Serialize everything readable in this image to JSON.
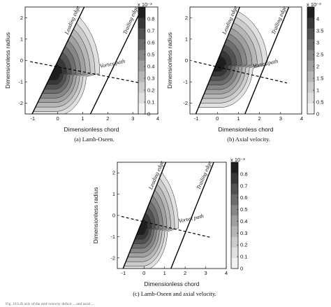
{
  "chart_data": [
    {
      "type": "contour",
      "caption": "(a) Lamb-Oseen.",
      "xlabel": "Dimensionless chord",
      "ylabel": "Dimensionless radius",
      "xlim": [
        -1.3,
        4.0
      ],
      "ylim": [
        -2.5,
        2.5
      ],
      "xticks": [
        "-1",
        "0",
        "1",
        "2",
        "3",
        "4"
      ],
      "yticks": [
        "2",
        "1",
        "0",
        "-1",
        "-2"
      ],
      "colorbar": {
        "exponent": "x 10⁻³",
        "ticks": [
          "0.8",
          "0.7",
          "0.6",
          "0.5",
          "0.4",
          "0.3",
          "0.2",
          "0.1",
          "0"
        ],
        "range": [
          0,
          0.9
        ]
      },
      "annotations": [
        "Leading edge",
        "Trailing edge",
        "Vortex path"
      ],
      "vortex_center": [
        -0.1,
        -0.6
      ]
    },
    {
      "type": "contour",
      "caption": "(b) Axial velocity.",
      "xlabel": "Dimensionless chord",
      "ylabel": "Dimensionless radius",
      "xlim": [
        -1.3,
        4.0
      ],
      "ylim": [
        -2.5,
        2.5
      ],
      "xticks": [
        "-1",
        "0",
        "1",
        "2",
        "3",
        "4"
      ],
      "yticks": [
        "2",
        "1",
        "0",
        "-1",
        "-2"
      ],
      "colorbar": {
        "exponent": "x 10⁻³",
        "ticks": [
          "4",
          "3.5",
          "3",
          "2.5",
          "2",
          "1.5",
          "1",
          "0.5",
          "0"
        ],
        "range": [
          0,
          4.5
        ]
      },
      "annotations": [
        "Leading edge",
        "Trailing edge",
        "Vortex path"
      ],
      "vortex_center": [
        0.1,
        -0.2
      ]
    },
    {
      "type": "contour",
      "caption": "(c) Lamb-Oseen and axial velocity.",
      "xlabel": "Dimensionless chord",
      "ylabel": "Dimensionless radius",
      "xlim": [
        -1.3,
        4.0
      ],
      "ylim": [
        -2.5,
        2.5
      ],
      "xticks": [
        "-1",
        "0",
        "1",
        "2",
        "3",
        "4"
      ],
      "yticks": [
        "2",
        "1",
        "0",
        "-1",
        "-2"
      ],
      "colorbar": {
        "exponent": "x 10⁻³",
        "ticks": [
          "0.8",
          "0.7",
          "0.6",
          "0.5",
          "0.4",
          "0.3",
          "0.2",
          "0.1",
          "0"
        ],
        "range": [
          0,
          0.9
        ]
      },
      "annotations": [
        "Leading edge",
        "Trailing edge",
        "Vortex path"
      ],
      "vortex_center": [
        -0.1,
        -0.6
      ]
    }
  ],
  "footer": "Fig. 10  Lift axis of the mid-velocity deficit ... and axial ..."
}
